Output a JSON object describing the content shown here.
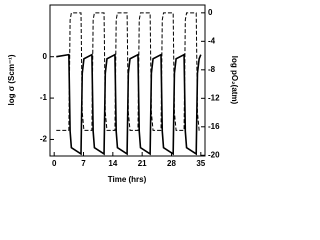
{
  "chart_data": {
    "type": "line",
    "x_label": "Time (hrs)",
    "y_label": "log σ (Scm⁻¹)",
    "y2_label": "log pO₂(atm)",
    "x": [
      0.5,
      3.5,
      3.8,
      4.1,
      6.4,
      6.7,
      7.1,
      9,
      9.3,
      9.6,
      11.9,
      12.2,
      12.6,
      14.5,
      14.8,
      15.1,
      17.4,
      17.7,
      18.1,
      20,
      20.3,
      20.6,
      22.9,
      23.2,
      23.6,
      25.5,
      25.8,
      26.1,
      28.4,
      28.7,
      29.1,
      31,
      31.3,
      31.6,
      33.9,
      34.2,
      34.6,
      35
    ],
    "series": [
      {
        "name": "log σ",
        "color": "#000000",
        "dashed": false,
        "values": [
          0.0,
          0.05,
          -1.8,
          -2.2,
          -2.35,
          -0.4,
          -0.05,
          0.05,
          -1.8,
          -2.2,
          -2.35,
          -0.4,
          -0.05,
          0.05,
          -1.8,
          -2.2,
          -2.35,
          -0.4,
          -0.05,
          0.05,
          -1.8,
          -2.2,
          -2.35,
          -0.4,
          -0.05,
          0.05,
          -1.8,
          -2.2,
          -2.35,
          -0.4,
          -0.05,
          0.05,
          -1.8,
          -2.2,
          -2.35,
          -0.4,
          -0.05,
          0.05
        ]
      },
      {
        "name": "log pO₂",
        "color": "#000000",
        "dashed": true,
        "axis": "y2",
        "values": [
          -16.5,
          -16.5,
          -1,
          0,
          0,
          -14,
          -16.5,
          -16.5,
          -1,
          0,
          0,
          -14,
          -16.5,
          -16.5,
          -1,
          0,
          0,
          -14,
          -16.5,
          -16.5,
          -1,
          0,
          0,
          -14,
          -16.5,
          -16.5,
          -1,
          0,
          0,
          -14,
          -16.5,
          -16.5,
          -1,
          0,
          0,
          -14,
          -16.5,
          -16.6
        ]
      }
    ],
    "xlim": [
      -1,
      36
    ],
    "xticks": [
      0,
      7,
      14,
      21,
      28,
      35
    ],
    "ylim": [
      -2.4,
      1.25
    ],
    "yticks": [
      -2,
      -1,
      0
    ],
    "y2lim": [
      -20.1,
      1.1
    ],
    "y2ticks": [
      0,
      -4,
      -8,
      -12,
      -16,
      -20
    ]
  }
}
